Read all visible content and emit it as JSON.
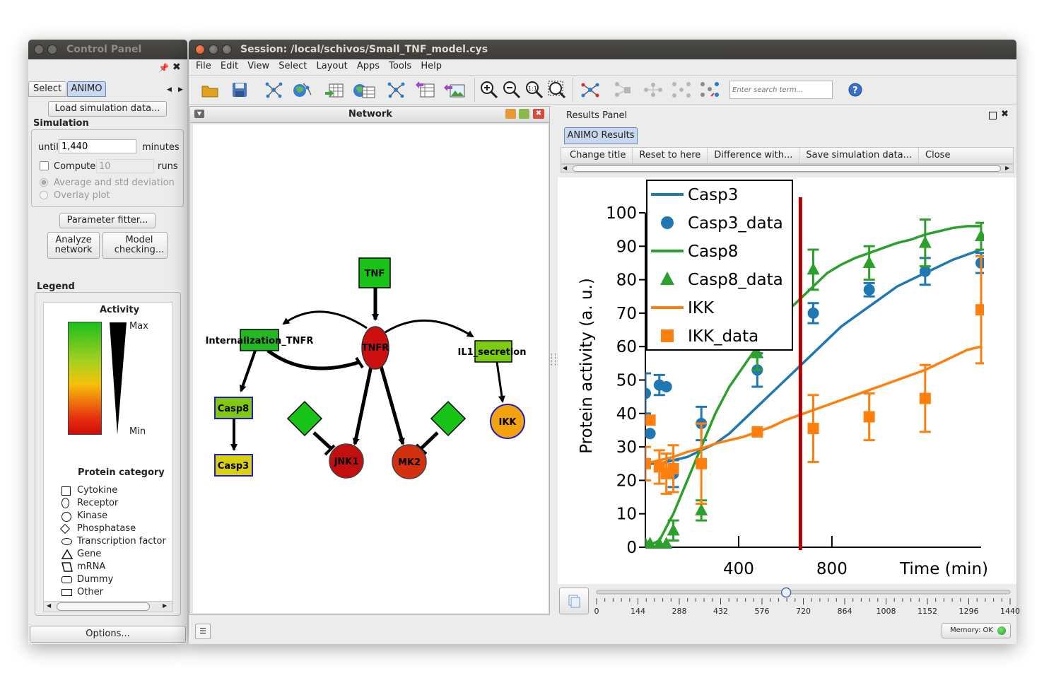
{
  "control_panel": {
    "title": "Control Panel",
    "tabs": [
      "Select",
      "ANIMO"
    ],
    "load_button": "Load simulation data...",
    "simulation_label": "Simulation",
    "until_label": "until",
    "until_value": "1,440",
    "minutes_label": "minutes",
    "compute_label": "Compute",
    "compute_value": "10",
    "runs_label": "runs",
    "avg_label": "Average and std deviation",
    "overlay_label": "Overlay plot",
    "parameter_fitter": "Parameter fitter...",
    "analyze_network": "Analyze network",
    "model_checking": "Model checking...",
    "legend_label": "Legend",
    "activity_label": "Activity",
    "max_label": "Max",
    "min_label": "Min",
    "protein_category_label": "Protein category",
    "categories": [
      "Cytokine",
      "Receptor",
      "Kinase",
      "Phosphatase",
      "Transcription factor",
      "Gene",
      "mRNA",
      "Dummy",
      "Other"
    ],
    "options_button": "Options..."
  },
  "session": {
    "title": "Session: /local/schivos/Small_TNF_model.cys",
    "menu": [
      "File",
      "Edit",
      "View",
      "Select",
      "Layout",
      "Apps",
      "Tools",
      "Help"
    ],
    "search_placeholder": "Enter search term...",
    "network_title": "Network",
    "results_title": "Results Panel",
    "results_tab": "ANIMO Results",
    "results_buttons": [
      "Change title",
      "Reset to here",
      "Difference with...",
      "Save simulation data...",
      "Close"
    ],
    "memory_label": "Memory: OK"
  },
  "network": {
    "nodes": [
      {
        "id": "TNF",
        "label": "TNF",
        "color": "#18c318"
      },
      {
        "id": "TNFR",
        "label": "TNFR",
        "color": "#cc1010"
      },
      {
        "id": "Internalization_TNFR",
        "label": "Internalization_TNFR",
        "color": "#22b922"
      },
      {
        "id": "IL1_secretion",
        "label": "IL1_secretion",
        "color": "#7ccc12"
      },
      {
        "id": "Casp8",
        "label": "Casp8",
        "color": "#82c80f"
      },
      {
        "id": "Casp3",
        "label": "Casp3",
        "color": "#d8d010"
      },
      {
        "id": "JNK1",
        "label": "JNK1",
        "color": "#c40f0f"
      },
      {
        "id": "MK2",
        "label": "MK2",
        "color": "#d43010"
      },
      {
        "id": "IKK",
        "label": "IKK",
        "color": "#f2a20c"
      }
    ]
  },
  "slider": {
    "ticks": [
      "0",
      "144",
      "288",
      "432",
      "576",
      "720",
      "864",
      "1008",
      "1152",
      "1296",
      "1440"
    ],
    "value": 660
  },
  "chart_data": {
    "type": "line",
    "xlabel": "Time (min)",
    "ylabel": "Protein activity (a. u.)",
    "xlim": [
      0,
      1440
    ],
    "ylim": [
      0,
      100
    ],
    "x_ticks": [
      "400",
      "800"
    ],
    "y_ticks": [
      "0",
      "10",
      "20",
      "30",
      "40",
      "50",
      "60",
      "70",
      "80",
      "90",
      "100"
    ],
    "cursor_x": 665,
    "legend_position": "top-left",
    "colors": {
      "Casp3": "#1f77b4",
      "Casp8": "#2ca02c",
      "IKK": "#ff7f0e",
      "cursor": "#b00000"
    },
    "series": [
      {
        "name": "Casp3",
        "kind": "line",
        "color": "#1f77b4",
        "x": [
          0,
          60,
          120,
          180,
          240,
          300,
          360,
          420,
          480,
          540,
          600,
          660,
          720,
          780,
          840,
          900,
          960,
          1020,
          1080,
          1140,
          1200,
          1260,
          1320,
          1380,
          1440
        ],
        "y": [
          25,
          25,
          26,
          27,
          29,
          31,
          34,
          38,
          42,
          46,
          50,
          54,
          58,
          62,
          66,
          69,
          72,
          75,
          78,
          80,
          82,
          84,
          86,
          87.5,
          89
        ]
      },
      {
        "name": "Casp3_data",
        "kind": "points",
        "marker": "circle",
        "color": "#1f77b4",
        "x": [
          0,
          20,
          60,
          90,
          120,
          240,
          480,
          720,
          960,
          1200,
          1440
        ],
        "y": [
          46,
          34,
          48.5,
          48,
          22,
          37,
          53,
          70,
          77,
          82.5,
          85
        ],
        "err": [
          6,
          0,
          3,
          0,
          4,
          5,
          5,
          3,
          2,
          4,
          3
        ]
      },
      {
        "name": "Casp8",
        "kind": "line",
        "color": "#2ca02c",
        "x": [
          0,
          60,
          120,
          180,
          240,
          300,
          360,
          420,
          480,
          540,
          600,
          660,
          720,
          780,
          840,
          900,
          960,
          1020,
          1080,
          1140,
          1200,
          1260,
          1320,
          1380,
          1440
        ],
        "y": [
          0,
          2,
          10,
          20,
          30,
          40,
          48,
          54,
          60,
          65,
          70,
          74,
          78,
          82,
          84.5,
          86.5,
          88,
          89.5,
          91,
          92,
          93.5,
          94.5,
          95.5,
          96,
          96
        ]
      },
      {
        "name": "Casp8_data",
        "kind": "points",
        "marker": "triangle",
        "color": "#2ca02c",
        "x": [
          0,
          20,
          60,
          90,
          120,
          240,
          480,
          720,
          960,
          1200,
          1440
        ],
        "y": [
          1,
          1,
          1,
          1,
          5,
          11,
          58,
          83,
          85,
          91,
          93
        ],
        "err": [
          0,
          0,
          0,
          0,
          3,
          3,
          5,
          6,
          5,
          7,
          4
        ]
      },
      {
        "name": "IKK",
        "kind": "line",
        "color": "#ff7f0e",
        "x": [
          0,
          60,
          120,
          180,
          240,
          300,
          360,
          420,
          480,
          540,
          600,
          660,
          720,
          780,
          840,
          900,
          960,
          1020,
          1080,
          1140,
          1200,
          1260,
          1320,
          1380,
          1440
        ],
        "y": [
          25,
          26,
          27,
          28.5,
          29.5,
          31,
          32,
          33,
          34.5,
          36,
          38,
          39.5,
          41,
          42.5,
          44,
          45.5,
          47,
          48.5,
          50,
          51.5,
          53,
          55,
          57,
          59,
          60
        ]
      },
      {
        "name": "IKK_data",
        "kind": "points",
        "marker": "square",
        "color": "#ff7f0e",
        "x": [
          0,
          20,
          60,
          90,
          120,
          240,
          480,
          720,
          960,
          1200,
          1440
        ],
        "y": [
          25,
          38,
          24,
          22,
          23.5,
          25,
          34.5,
          35.5,
          39,
          44.5,
          71
        ],
        "err": [
          5,
          0,
          5,
          6,
          7,
          12,
          0,
          10,
          7,
          10,
          16
        ]
      }
    ]
  }
}
